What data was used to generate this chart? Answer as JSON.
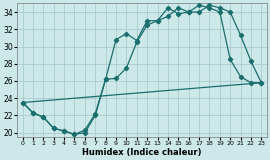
{
  "xlabel": "Humidex (Indice chaleur)",
  "bg_color": "#cce8e8",
  "grid_color": "#aacccc",
  "line_color": "#1a6e6e",
  "xlim": [
    -0.5,
    23.5
  ],
  "ylim": [
    19.5,
    35.0
  ],
  "xticks": [
    0,
    1,
    2,
    3,
    4,
    5,
    6,
    7,
    8,
    9,
    10,
    11,
    12,
    13,
    14,
    15,
    16,
    17,
    18,
    19,
    20,
    21,
    22,
    23
  ],
  "yticks": [
    20,
    22,
    24,
    26,
    28,
    30,
    32,
    34
  ],
  "line1_x": [
    0,
    1,
    2,
    3,
    4,
    5,
    6,
    7,
    8,
    9,
    10,
    11,
    12,
    13,
    14,
    15,
    16,
    17,
    18,
    19,
    20,
    21,
    22,
    23
  ],
  "line1_y": [
    23.5,
    22.3,
    21.8,
    20.5,
    20.2,
    19.8,
    20.0,
    22.0,
    26.2,
    30.8,
    31.5,
    30.7,
    33.0,
    33.0,
    34.5,
    33.8,
    34.0,
    34.8,
    34.5,
    34.0,
    28.5,
    26.5,
    25.8,
    25.8
  ],
  "line2_x": [
    0,
    1,
    2,
    3,
    4,
    5,
    6,
    7,
    8,
    9,
    10,
    11,
    12,
    13,
    14,
    15,
    16,
    17,
    18,
    19,
    20,
    21,
    22,
    23
  ],
  "line2_y": [
    23.5,
    22.3,
    21.8,
    20.5,
    20.2,
    19.8,
    20.3,
    22.2,
    26.2,
    26.3,
    27.5,
    30.5,
    32.5,
    33.0,
    33.5,
    34.5,
    34.0,
    34.0,
    34.8,
    34.5,
    34.0,
    31.3,
    28.3,
    25.8
  ],
  "line3_x": [
    0,
    23
  ],
  "line3_y": [
    23.5,
    25.8
  ]
}
